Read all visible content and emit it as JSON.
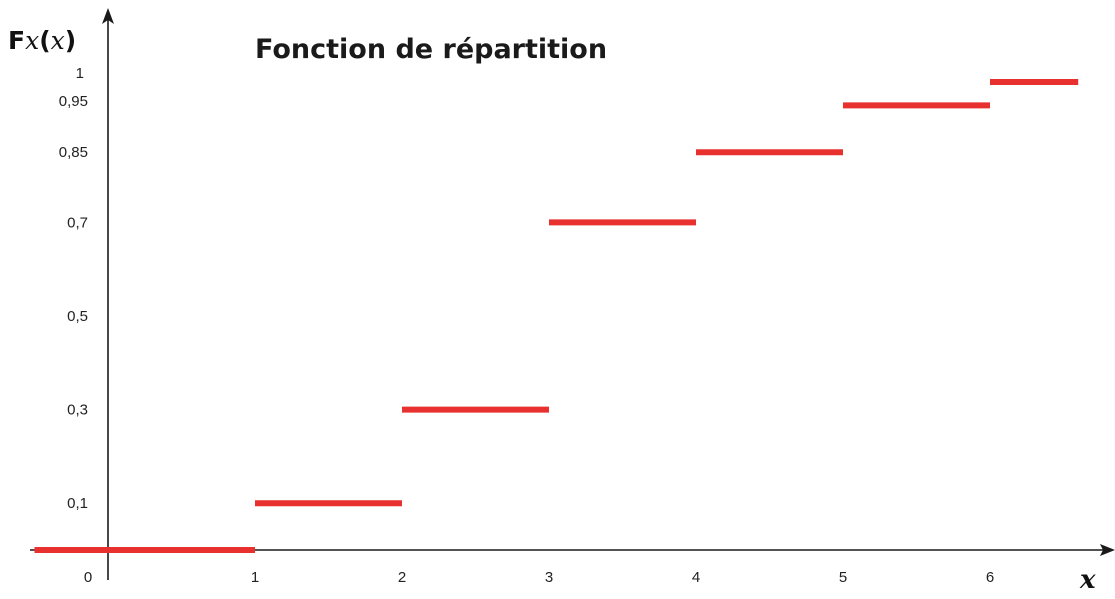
{
  "chart_data": {
    "type": "line",
    "title": "Fonction de répartition",
    "ylabel_main": "F",
    "ylabel_sub": "x",
    "ylabel_paren_open": "(",
    "ylabel_var": "x",
    "ylabel_paren_close": ")",
    "xlabel": "x",
    "xlim": [
      -0.5,
      6.6
    ],
    "ylim": [
      0,
      1
    ],
    "grid": false,
    "legend": "none",
    "color": "#e8312e",
    "x_ticks": [
      "0",
      "1",
      "2",
      "3",
      "4",
      "5",
      "6"
    ],
    "y_ticks": [
      {
        "value": 0.1,
        "label": "0,1"
      },
      {
        "value": 0.3,
        "label": "0,3"
      },
      {
        "value": 0.5,
        "label": "0,5"
      },
      {
        "value": 0.7,
        "label": "0,7"
      },
      {
        "value": 0.85,
        "label": "0,85"
      },
      {
        "value": 0.95,
        "label": "0,95"
      },
      {
        "value": 1,
        "label": "1"
      }
    ],
    "steps": [
      {
        "x_start": -0.5,
        "x_end": 1,
        "y": 0
      },
      {
        "x_start": 1,
        "x_end": 2,
        "y": 0.1
      },
      {
        "x_start": 2,
        "x_end": 3,
        "y": 0.3
      },
      {
        "x_start": 3,
        "x_end": 4,
        "y": 0.7
      },
      {
        "x_start": 4,
        "x_end": 5,
        "y": 0.85
      },
      {
        "x_start": 5,
        "x_end": 6,
        "y": 0.95
      },
      {
        "x_start": 6,
        "x_end": 6.6,
        "y": 1
      }
    ]
  }
}
